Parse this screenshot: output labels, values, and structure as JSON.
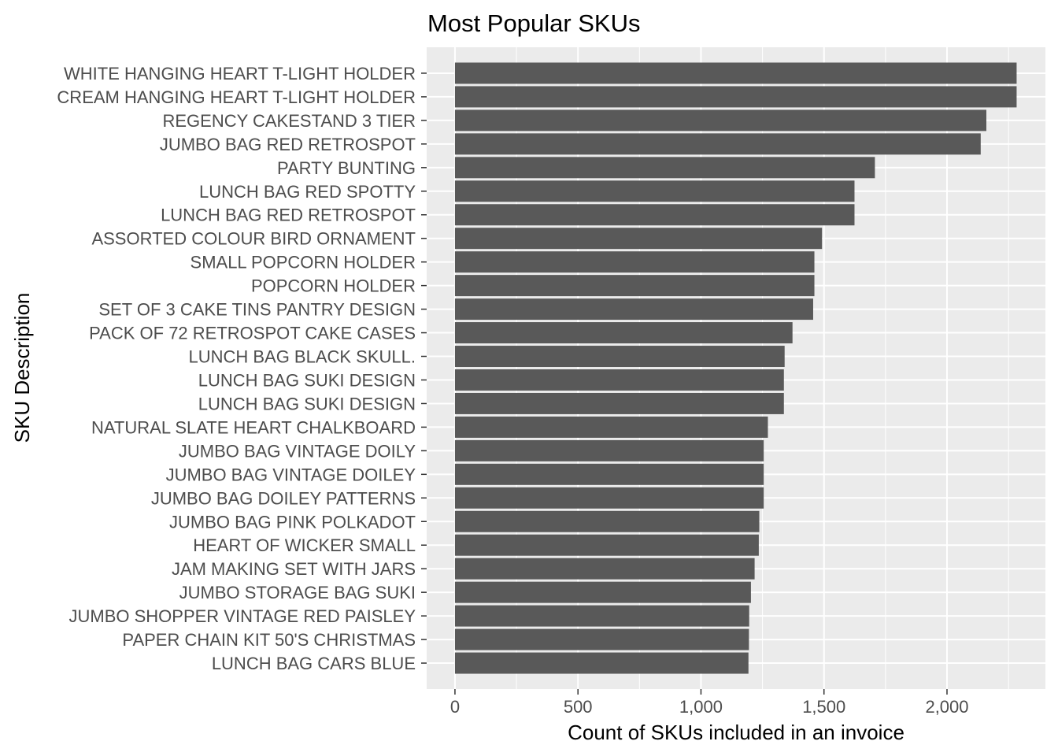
{
  "chart_data": {
    "type": "bar",
    "orientation": "horizontal",
    "title": "Most Popular SKUs",
    "xlabel": "Count of SKUs included in an invoice",
    "ylabel": "SKU Description",
    "xlim": [
      -115,
      2400
    ],
    "xticks": [
      0,
      500,
      1000,
      1500,
      2000
    ],
    "xtick_labels": [
      "0",
      "500",
      "1,000",
      "1,500",
      "2,000"
    ],
    "grid": true,
    "legend": "none",
    "colors": {
      "bar": "#595959",
      "panel": "#ebebeb",
      "grid": "#ffffff"
    },
    "categories": [
      "WHITE HANGING HEART T-LIGHT HOLDER",
      "CREAM HANGING HEART T-LIGHT HOLDER",
      "REGENCY CAKESTAND 3 TIER",
      "JUMBO BAG RED RETROSPOT",
      "PARTY BUNTING",
      "LUNCH BAG RED SPOTTY",
      "LUNCH BAG RED RETROSPOT",
      "ASSORTED COLOUR BIRD ORNAMENT",
      "SMALL POPCORN HOLDER",
      "POPCORN HOLDER",
      "SET OF 3 CAKE TINS PANTRY DESIGN",
      "PACK OF 72 RETROSPOT CAKE CASES",
      "LUNCH BAG  BLACK SKULL.",
      "LUNCH BAG SUKI DESIGN",
      "LUNCH BAG SUKI  DESIGN",
      "NATURAL SLATE HEART CHALKBOARD",
      "JUMBO BAG VINTAGE DOILY",
      "JUMBO BAG VINTAGE DOILEY",
      "JUMBO BAG DOILEY PATTERNS",
      "JUMBO BAG PINK POLKADOT",
      "HEART OF WICKER SMALL",
      "JAM MAKING SET WITH JARS",
      "JUMBO STORAGE BAG SUKI",
      "JUMBO SHOPPER VINTAGE RED PAISLEY",
      "PAPER CHAIN KIT 50'S CHRISTMAS",
      "LUNCH BAG CARS BLUE"
    ],
    "values": [
      2283,
      2283,
      2160,
      2137,
      1707,
      1624,
      1624,
      1492,
      1461,
      1461,
      1456,
      1372,
      1340,
      1337,
      1337,
      1272,
      1255,
      1255,
      1255,
      1237,
      1235,
      1218,
      1203,
      1196,
      1195,
      1193
    ]
  }
}
